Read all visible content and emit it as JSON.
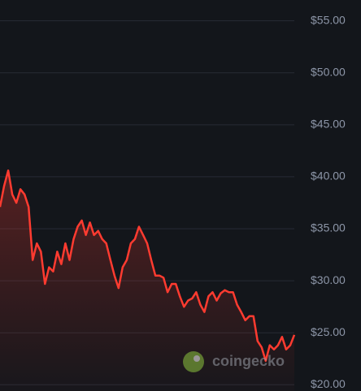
{
  "chart_data": {
    "type": "line",
    "watermark": "coingecko",
    "values": [
      37.1,
      39.1,
      40.6,
      38.3,
      37.5,
      38.8,
      38.3,
      37.1,
      32.0,
      33.6,
      32.8,
      29.7,
      31.3,
      30.9,
      32.8,
      31.6,
      33.6,
      32.0,
      34.0,
      35.2,
      35.8,
      34.4,
      35.6,
      34.4,
      34.8,
      34.0,
      33.6,
      32.0,
      30.5,
      29.3,
      31.3,
      32.0,
      33.6,
      34.0,
      35.2,
      34.4,
      33.6,
      32.0,
      30.5,
      30.5,
      30.3,
      28.9,
      29.7,
      29.7,
      28.5,
      27.5,
      28.1,
      28.3,
      28.9,
      27.7,
      27.0,
      28.5,
      28.9,
      28.1,
      28.8,
      29.1,
      28.9,
      28.9,
      27.7,
      27.0,
      26.2,
      26.6,
      26.6,
      24.2,
      23.6,
      22.3,
      23.8,
      23.4,
      23.8,
      24.6,
      23.4,
      23.8,
      24.8
    ],
    "color": "#ff3b30",
    "ylim": [
      19.4,
      57.0
    ],
    "yticks": [
      {
        "value": 20,
        "label": "$20.00"
      },
      {
        "value": 25,
        "label": "$25.00"
      },
      {
        "value": 30,
        "label": "$30.00"
      },
      {
        "value": 35,
        "label": "$35.00"
      },
      {
        "value": 40,
        "label": "$40.00"
      },
      {
        "value": 45,
        "label": "$45.00"
      },
      {
        "value": 50,
        "label": "$50.00"
      },
      {
        "value": 55,
        "label": "$55.00"
      }
    ],
    "grid": true
  }
}
